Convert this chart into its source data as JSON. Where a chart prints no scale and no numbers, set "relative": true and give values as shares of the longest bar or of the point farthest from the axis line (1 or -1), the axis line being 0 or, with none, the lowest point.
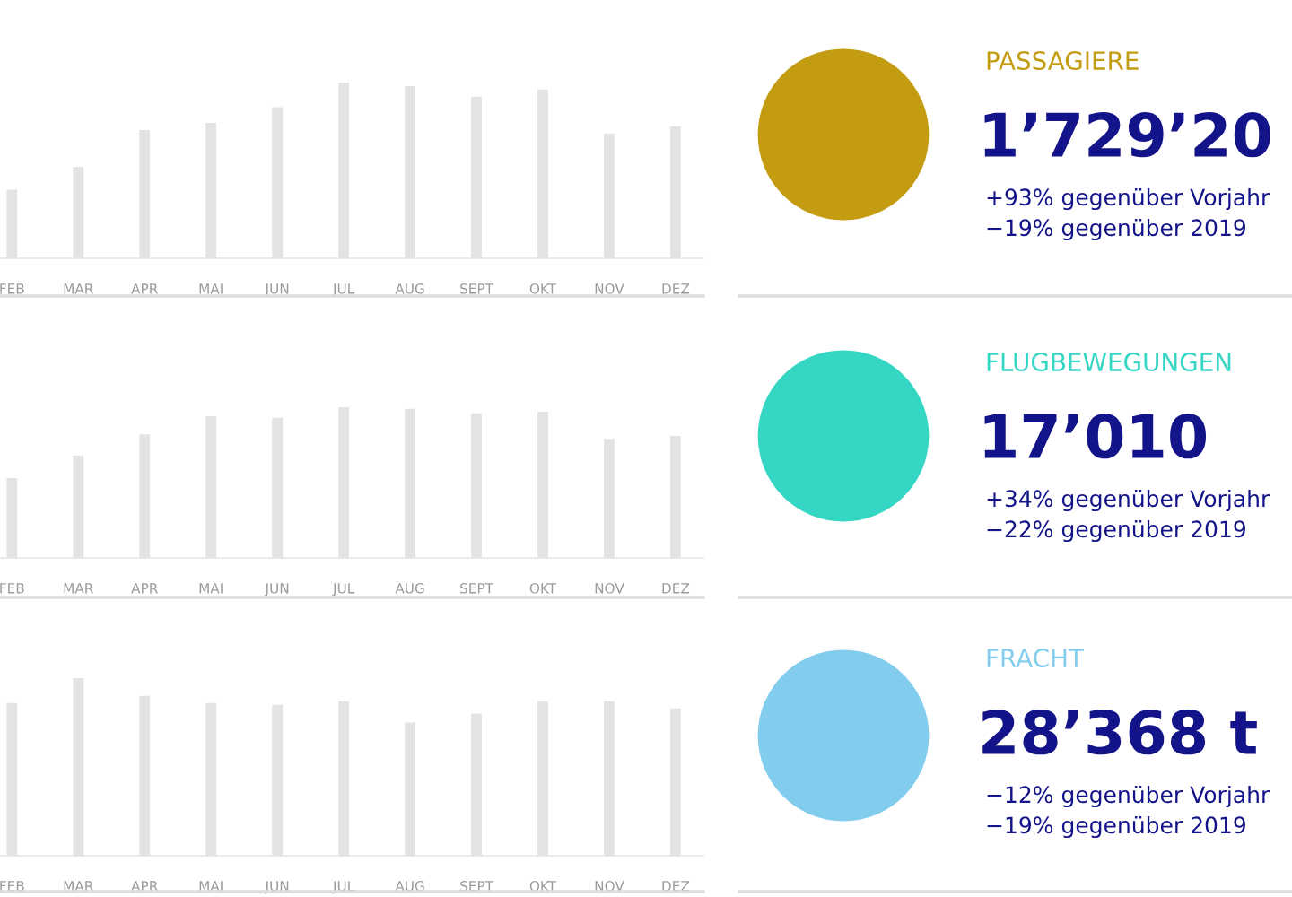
{
  "chart_data": [
    {
      "type": "bar",
      "relative": true,
      "categories": [
        "FEB",
        "MAR",
        "APR",
        "MAI",
        "JUN",
        "JUL",
        "AUG",
        "SEPT",
        "OKT",
        "NOV",
        "DEZ"
      ],
      "color": "#e3e3e3",
      "values": [
        0.39,
        0.52,
        0.73,
        0.77,
        0.86,
        1,
        0.98,
        0.92,
        0.96,
        0.71,
        0.75
      ]
    },
    {
      "type": "other",
      "title": "PASSAGIERE",
      "subtitle": "1’729’20",
      "annotations": [
        "+93% gegenüber Vorjahr",
        "−19% gegenüber 2019"
      ]
    },
    {
      "type": "bar",
      "relative": true,
      "categories": [
        "FEB",
        "MAR",
        "APR",
        "MAI",
        "JUN",
        "JUL",
        "AUG",
        "SEPT",
        "OKT",
        "NOV",
        "DEZ"
      ],
      "color": "#e3e3e3",
      "values": [
        0.53,
        0.68,
        0.82,
        0.94,
        0.93,
        1,
        0.99,
        0.96,
        0.97,
        0.79,
        0.81
      ]
    },
    {
      "type": "other",
      "title": "FLUGBEWEGUNGEN",
      "subtitle": "17’010",
      "annotations": [
        "+34% gegenüber Vorjahr",
        "−22% gegenüber 2019"
      ]
    },
    {
      "type": "bar",
      "relative": true,
      "categories": [
        "FEB",
        "MAR",
        "APR",
        "MAI",
        "JUN",
        "JUL",
        "AUG",
        "SEPT",
        "OKT",
        "NOV",
        "DEZ"
      ],
      "color": "#e3e3e3",
      "values": [
        0.86,
        1,
        0.9,
        0.86,
        0.85,
        0.87,
        0.75,
        0.8,
        0.87,
        0.87,
        0.83
      ]
    },
    {
      "type": "other",
      "title": "FRACHT",
      "subtitle": "28’368 t",
      "annotations": [
        "−12% gegenüber Vorjahr",
        "−19% gegenüber 2019"
      ]
    }
  ]
}
